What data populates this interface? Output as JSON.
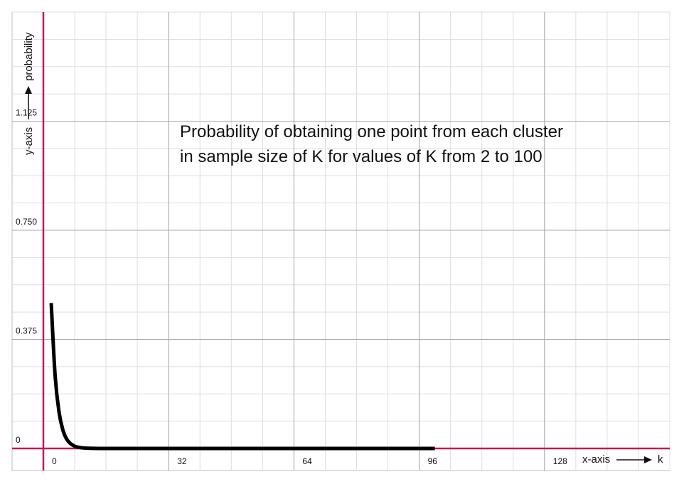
{
  "chart_data": {
    "type": "line",
    "title_lines": [
      "Probability of obtaining one point from each cluster",
      "in sample size of K for values of K from 2 to 100"
    ],
    "x_axis_label": "x-axis",
    "x_axis_var": "k",
    "y_axis_label": "y-axis",
    "y_axis_var": "probability",
    "xlim": [
      0,
      160
    ],
    "ylim": [
      0,
      1.5
    ],
    "x_ticks": [
      0,
      32,
      64,
      96,
      128
    ],
    "x_tick_labels": [
      "0",
      "32",
      "64",
      "96",
      "128"
    ],
    "y_ticks": [
      0,
      0.375,
      0.75,
      1.125
    ],
    "y_tick_labels": [
      "0",
      "0.375",
      "0.750",
      "1.125"
    ],
    "grid": true,
    "series": [
      {
        "x": [
          2,
          3,
          4,
          5,
          6,
          7,
          8,
          9,
          10,
          12,
          15,
          20,
          30,
          40,
          50,
          60,
          70,
          80,
          90,
          100
        ],
        "y": [
          0.5,
          0.25,
          0.125,
          0.0625,
          0.031,
          0.016,
          0.008,
          0.004,
          0.002,
          0.0005,
          0.0001,
          0,
          0,
          0,
          0,
          0,
          0,
          0,
          0,
          0
        ]
      }
    ],
    "colors": {
      "axis": "#c2185b",
      "major_grid": "#a8a8a8",
      "minor_grid": "#dddddd",
      "curve": "#000000"
    }
  }
}
